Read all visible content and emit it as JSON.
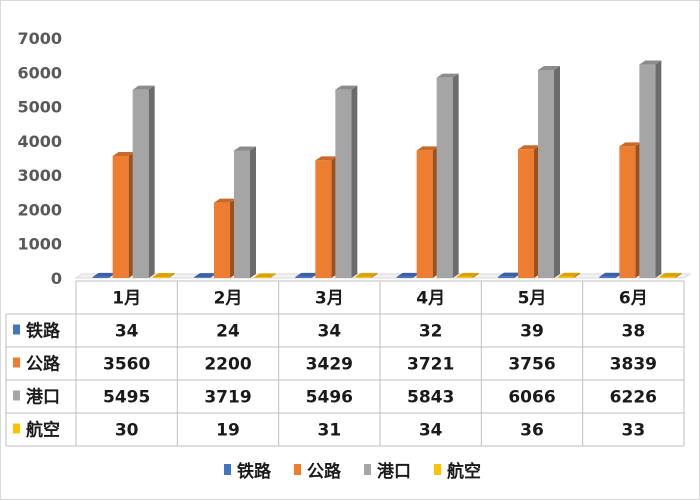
{
  "chart_data": {
    "type": "bar",
    "title": "",
    "xlabel": "",
    "ylabel": "",
    "ylim": [
      0,
      7000
    ],
    "yticks": [
      0,
      1000,
      2000,
      3000,
      4000,
      5000,
      6000,
      7000
    ],
    "categories": [
      "1月",
      "2月",
      "3月",
      "4月",
      "5月",
      "6月"
    ],
    "series": [
      {
        "name": "铁路",
        "color": "#4472c4",
        "values": [
          34,
          24,
          34,
          32,
          39,
          38
        ]
      },
      {
        "name": "公路",
        "color": "#ed7d31",
        "values": [
          3560,
          2200,
          3429,
          3721,
          3756,
          3839
        ]
      },
      {
        "name": "港口",
        "color": "#a5a5a5",
        "values": [
          5495,
          3719,
          5496,
          5843,
          6066,
          6226
        ]
      },
      {
        "name": "航空",
        "color": "#ffc000",
        "values": [
          30,
          19,
          31,
          34,
          36,
          33
        ]
      }
    ],
    "grid": false,
    "legend_placement": "bottom",
    "data_table": true
  }
}
